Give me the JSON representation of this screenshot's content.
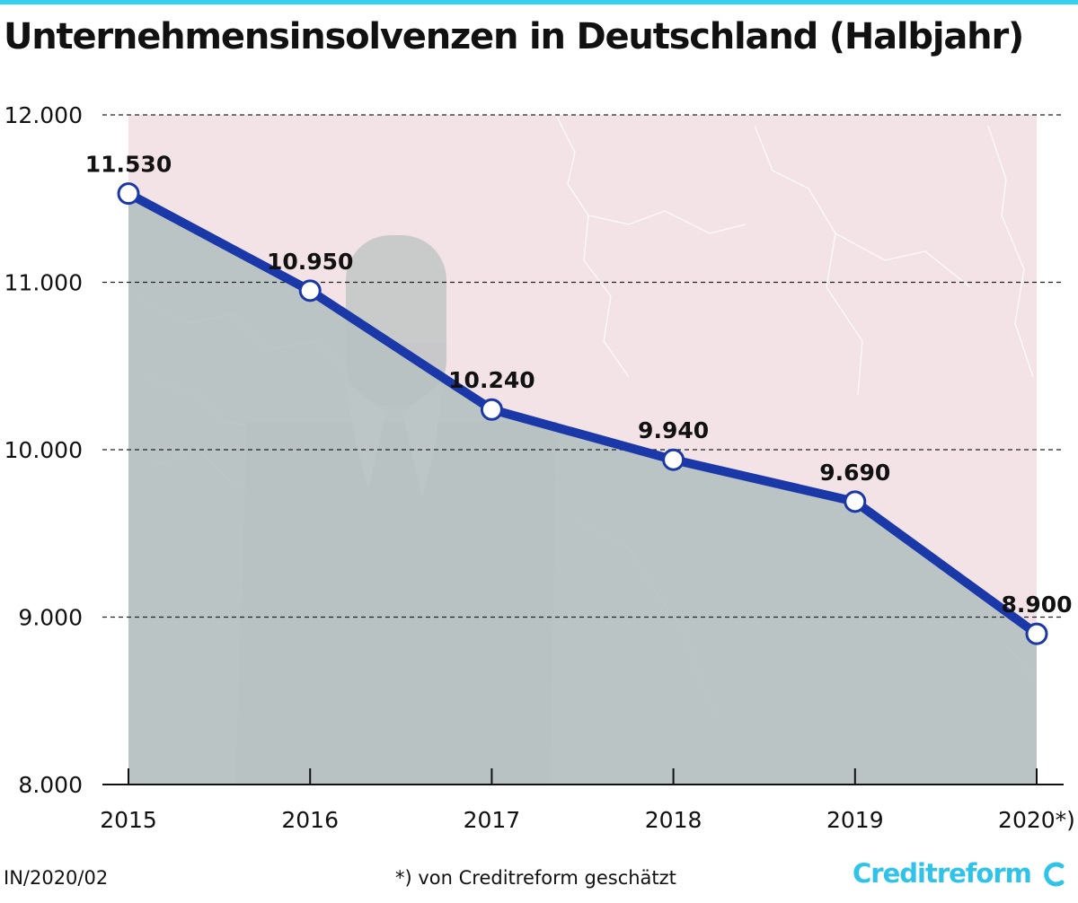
{
  "title": "Unternehmensinsolvenzen in Deutschland (Halbjahr)",
  "footer": {
    "code": "IN/2020/02",
    "note": "*) von Creditreform geschätzt",
    "brand": "Creditreform"
  },
  "colors": {
    "accent": "#35d0f0",
    "line": "#1a38a8",
    "area": "#b6c1c2",
    "background_tint": "#f3e3e6",
    "brand": "#2fc3ea"
  },
  "chart_data": {
    "type": "line",
    "title": "Unternehmensinsolvenzen in Deutschland (Halbjahr)",
    "categories": [
      "2015",
      "2016",
      "2017",
      "2018",
      "2019",
      "2020*)"
    ],
    "series": [
      {
        "values": [
          11530,
          10950,
          10240,
          9940,
          9690,
          8900
        ]
      }
    ],
    "data_labels": [
      "11.530",
      "10.950",
      "10.240",
      "9.940",
      "9.690",
      "8.900"
    ],
    "ylim": [
      8000,
      12000
    ],
    "yticks": [
      8000,
      9000,
      10000,
      11000,
      12000
    ],
    "ytick_labels": [
      "8.000",
      "9.000",
      "10.000",
      "11.000",
      "12.000"
    ],
    "grid": true,
    "fill_under_line": true,
    "xlabel": "",
    "ylabel": ""
  }
}
